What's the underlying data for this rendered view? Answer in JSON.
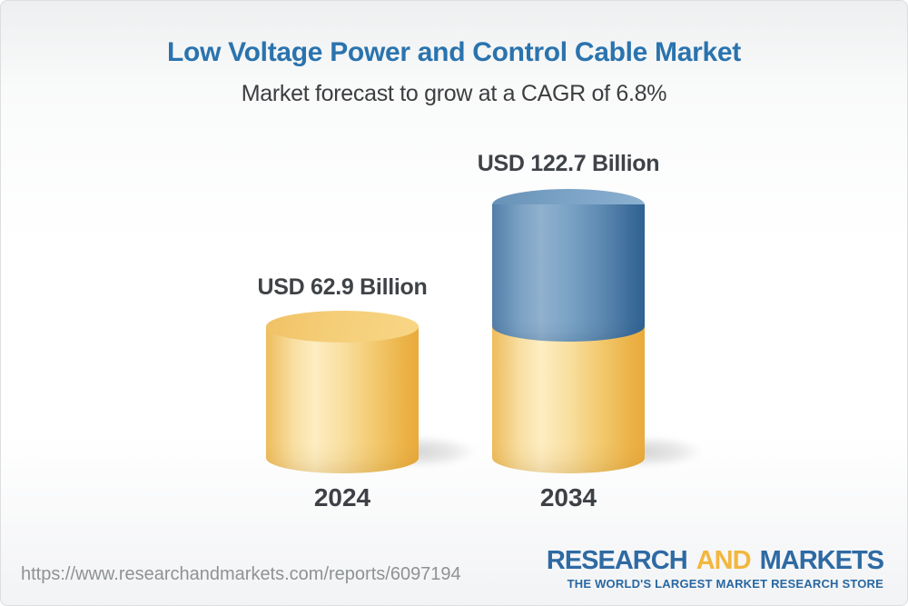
{
  "header": {
    "title": "Low Voltage Power and Control Cable Market",
    "subtitle": "Market forecast to grow at a CAGR of 6.8%",
    "title_color": "#2A73AE"
  },
  "chart_data": {
    "type": "bar",
    "subtype": "3d-cylinder",
    "unit": "USD Billion",
    "categories": [
      "2024",
      "2034"
    ],
    "values": [
      62.9,
      122.7
    ],
    "value_labels": [
      "USD 62.9 Billion",
      "USD 122.7 Billion"
    ],
    "cagr_percent": 6.8,
    "legend": "none",
    "grid": "off",
    "axes": "none",
    "note": "2034 cylinder is stacked: gold base segment equal to 2024 value plus blue growth segment on top",
    "colors": {
      "base_segment_gold": "#F2C564",
      "growth_segment_blue": "#5585B0",
      "label_text": "#3F4347"
    }
  },
  "footer": {
    "url": "https://www.researchandmarkets.com/reports/6097194",
    "logo": {
      "word1": "RESEARCH",
      "word2": "AND",
      "word3": "MARKETS",
      "tagline": "THE WORLD'S LARGEST MARKET RESEARCH STORE",
      "blue": "#2E6AA3",
      "gold": "#F2B73D"
    }
  }
}
